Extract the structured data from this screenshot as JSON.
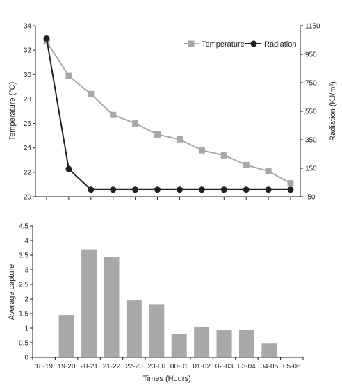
{
  "chart_data": [
    {
      "type": "line",
      "title": "",
      "categories": [
        "18-19",
        "19-20",
        "20-21",
        "21-22",
        "22-23",
        "23-00",
        "00-01",
        "01-02",
        "02-03",
        "03-04",
        "04-05",
        "05-06"
      ],
      "ylabel": "Temperature (°C)",
      "ylabel_right": "Radiation (KJ/m²)",
      "ylim": [
        20,
        34
      ],
      "ylim_right": [
        -50,
        1150
      ],
      "yticks": [
        20,
        22,
        24,
        26,
        28,
        30,
        32,
        34
      ],
      "yticks_right": [
        -50,
        150,
        350,
        550,
        750,
        950,
        1150
      ],
      "legend_position": "top-right",
      "colors": {
        "temperature": "#a8a8a8",
        "radiation": "#231f20"
      },
      "series": [
        {
          "name": "Temperature",
          "axis": "left",
          "marker": "square",
          "values": [
            32.7,
            29.9,
            28.4,
            26.7,
            26.0,
            25.1,
            24.7,
            23.8,
            23.4,
            22.6,
            22.1,
            21.1
          ]
        },
        {
          "name": "Radiation",
          "axis": "right",
          "marker": "circle",
          "values": [
            1060,
            145,
            0,
            0,
            0,
            0,
            0,
            0,
            0,
            0,
            0,
            0
          ]
        }
      ]
    },
    {
      "type": "bar",
      "title": "",
      "categories": [
        "18-19",
        "19-20",
        "20-21",
        "21-22",
        "22-23",
        "23-00",
        "00-01",
        "01-02",
        "02-03",
        "03-04",
        "04-05",
        "05-06"
      ],
      "values": [
        0,
        1.45,
        3.7,
        3.45,
        1.95,
        1.8,
        0.8,
        1.05,
        0.95,
        0.95,
        0.47,
        0
      ],
      "xlabel": "Times (Hours)",
      "ylabel": "Average capture",
      "ylim": [
        0,
        4.5
      ],
      "yticks": [
        "0",
        "0.5",
        "1",
        "1.5",
        "2",
        "2.5",
        "3",
        "3.5",
        "4",
        "4.5"
      ],
      "colors": {
        "bar": "#a8a8a8"
      }
    }
  ]
}
